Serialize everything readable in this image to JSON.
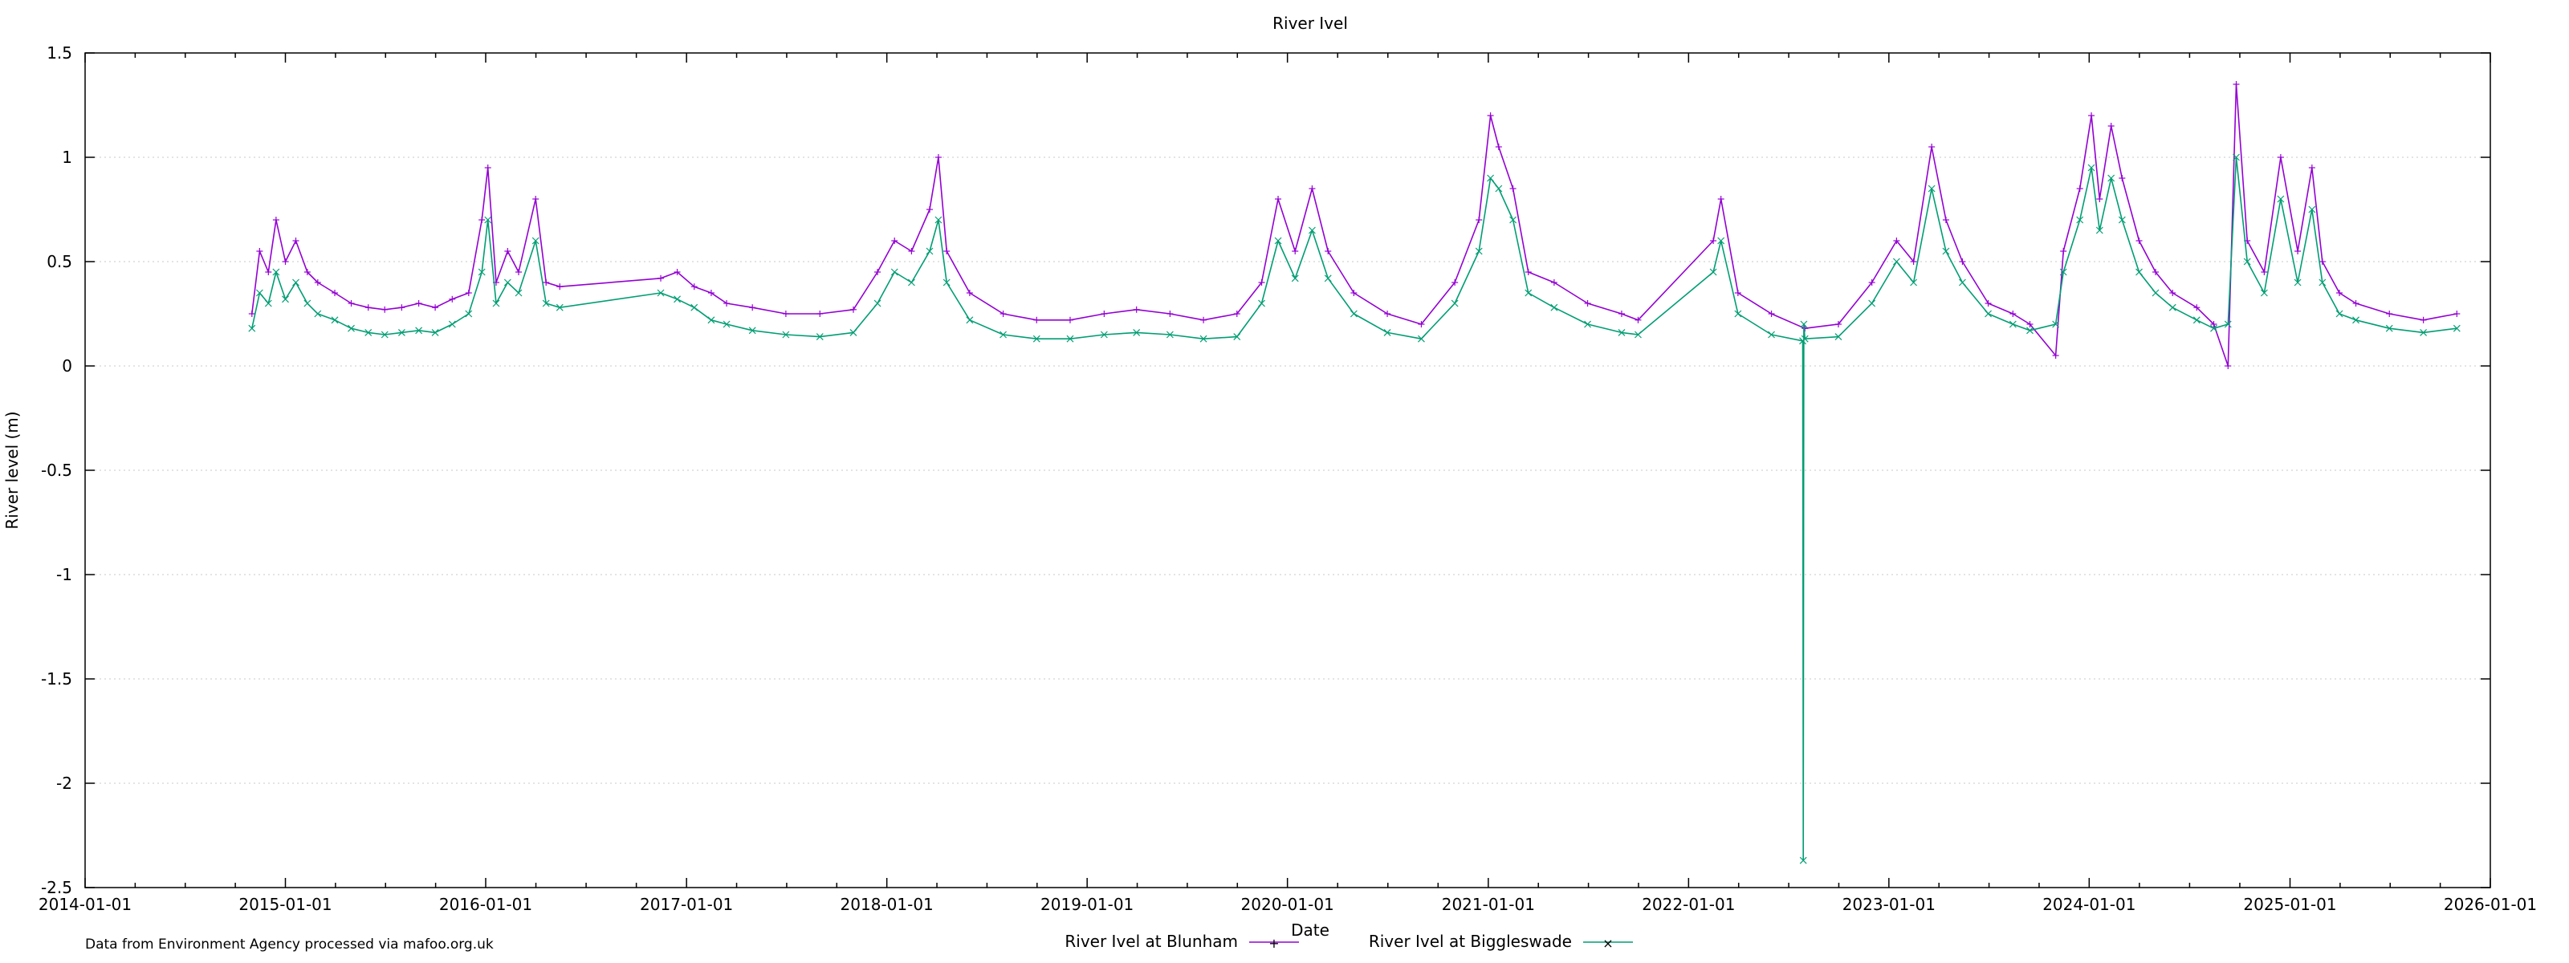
{
  "chart_data": {
    "type": "line",
    "title": "River Ivel",
    "xlabel": "Date",
    "ylabel": "River level (m)",
    "footer": "Data from Environment Agency processed via mafoo.org.uk",
    "x_axis": {
      "type": "date",
      "range": [
        "2014-01-01",
        "2026-01-01"
      ],
      "ticks": [
        "2014-01-01",
        "2015-01-01",
        "2016-01-01",
        "2017-01-01",
        "2018-01-01",
        "2019-01-01",
        "2020-01-01",
        "2021-01-01",
        "2022-01-01",
        "2023-01-01",
        "2024-01-01",
        "2025-01-01",
        "2026-01-01"
      ]
    },
    "y_axis": {
      "range": [
        -2.5,
        1.5
      ],
      "ticks": [
        "-2.5",
        "-2",
        "-1.5",
        "-1",
        "-0.5",
        "0",
        "0.5",
        "1",
        "1.5"
      ],
      "grid": true
    },
    "legend": {
      "placement": "bottom-center"
    },
    "series": [
      {
        "name": "River Ivel at Blunham",
        "color": "#9400d3",
        "marker": "+",
        "points": [
          [
            "2014-11-01",
            0.25
          ],
          [
            "2014-11-15",
            0.55
          ],
          [
            "2014-12-01",
            0.45
          ],
          [
            "2014-12-15",
            0.7
          ],
          [
            "2015-01-01",
            0.5
          ],
          [
            "2015-01-20",
            0.6
          ],
          [
            "2015-02-10",
            0.45
          ],
          [
            "2015-03-01",
            0.4
          ],
          [
            "2015-04-01",
            0.35
          ],
          [
            "2015-05-01",
            0.3
          ],
          [
            "2015-06-01",
            0.28
          ],
          [
            "2015-07-01",
            0.27
          ],
          [
            "2015-08-01",
            0.28
          ],
          [
            "2015-09-01",
            0.3
          ],
          [
            "2015-10-01",
            0.28
          ],
          [
            "2015-11-01",
            0.32
          ],
          [
            "2015-12-01",
            0.35
          ],
          [
            "2015-12-25",
            0.7
          ],
          [
            "2016-01-05",
            0.95
          ],
          [
            "2016-01-20",
            0.4
          ],
          [
            "2016-02-10",
            0.55
          ],
          [
            "2016-03-01",
            0.45
          ],
          [
            "2016-04-01",
            0.8
          ],
          [
            "2016-04-20",
            0.4
          ],
          [
            "2016-05-15",
            0.38
          ],
          [
            "2016-11-15",
            0.42
          ],
          [
            "2016-12-15",
            0.45
          ],
          [
            "2017-01-15",
            0.38
          ],
          [
            "2017-02-15",
            0.35
          ],
          [
            "2017-03-15",
            0.3
          ],
          [
            "2017-05-01",
            0.28
          ],
          [
            "2017-07-01",
            0.25
          ],
          [
            "2017-09-01",
            0.25
          ],
          [
            "2017-11-01",
            0.27
          ],
          [
            "2017-12-15",
            0.45
          ],
          [
            "2018-01-15",
            0.6
          ],
          [
            "2018-02-15",
            0.55
          ],
          [
            "2018-03-20",
            0.75
          ],
          [
            "2018-04-05",
            1.0
          ],
          [
            "2018-04-20",
            0.55
          ],
          [
            "2018-06-01",
            0.35
          ],
          [
            "2018-08-01",
            0.25
          ],
          [
            "2018-10-01",
            0.22
          ],
          [
            "2018-12-01",
            0.22
          ],
          [
            "2019-02-01",
            0.25
          ],
          [
            "2019-04-01",
            0.27
          ],
          [
            "2019-06-01",
            0.25
          ],
          [
            "2019-08-01",
            0.22
          ],
          [
            "2019-10-01",
            0.25
          ],
          [
            "2019-11-15",
            0.4
          ],
          [
            "2019-12-15",
            0.8
          ],
          [
            "2020-01-15",
            0.55
          ],
          [
            "2020-02-15",
            0.85
          ],
          [
            "2020-03-15",
            0.55
          ],
          [
            "2020-05-01",
            0.35
          ],
          [
            "2020-07-01",
            0.25
          ],
          [
            "2020-09-01",
            0.2
          ],
          [
            "2020-11-01",
            0.4
          ],
          [
            "2020-12-15",
            0.7
          ],
          [
            "2021-01-05",
            1.2
          ],
          [
            "2021-01-20",
            1.05
          ],
          [
            "2021-02-15",
            0.85
          ],
          [
            "2021-03-15",
            0.45
          ],
          [
            "2021-05-01",
            0.4
          ],
          [
            "2021-07-01",
            0.3
          ],
          [
            "2021-09-01",
            0.25
          ],
          [
            "2021-10-01",
            0.22
          ],
          [
            "2022-02-15",
            0.6
          ],
          [
            "2022-03-01",
            0.8
          ],
          [
            "2022-04-01",
            0.35
          ],
          [
            "2022-06-01",
            0.25
          ],
          [
            "2022-08-01",
            0.18
          ],
          [
            "2022-10-01",
            0.2
          ],
          [
            "2022-12-01",
            0.4
          ],
          [
            "2023-01-15",
            0.6
          ],
          [
            "2023-02-15",
            0.5
          ],
          [
            "2023-03-20",
            1.05
          ],
          [
            "2023-04-15",
            0.7
          ],
          [
            "2023-05-15",
            0.5
          ],
          [
            "2023-07-01",
            0.3
          ],
          [
            "2023-08-15",
            0.25
          ],
          [
            "2023-09-15",
            0.2
          ],
          [
            "2023-11-01",
            0.05
          ],
          [
            "2023-11-15",
            0.55
          ],
          [
            "2023-12-15",
            0.85
          ],
          [
            "2024-01-05",
            1.2
          ],
          [
            "2024-01-20",
            0.8
          ],
          [
            "2024-02-10",
            1.15
          ],
          [
            "2024-03-01",
            0.9
          ],
          [
            "2024-04-01",
            0.6
          ],
          [
            "2024-05-01",
            0.45
          ],
          [
            "2024-06-01",
            0.35
          ],
          [
            "2024-07-15",
            0.28
          ],
          [
            "2024-08-15",
            0.2
          ],
          [
            "2024-09-10",
            0.0
          ],
          [
            "2024-09-25",
            1.35
          ],
          [
            "2024-10-15",
            0.6
          ],
          [
            "2024-11-15",
            0.45
          ],
          [
            "2024-12-15",
            1.0
          ],
          [
            "2025-01-15",
            0.55
          ],
          [
            "2025-02-10",
            0.95
          ],
          [
            "2025-03-01",
            0.5
          ],
          [
            "2025-04-01",
            0.35
          ],
          [
            "2025-05-01",
            0.3
          ],
          [
            "2025-07-01",
            0.25
          ],
          [
            "2025-09-01",
            0.22
          ],
          [
            "2025-11-01",
            0.25
          ]
        ]
      },
      {
        "name": "River Ivel at Biggleswade",
        "color": "#009e73",
        "marker": "x",
        "points": [
          [
            "2014-11-01",
            0.18
          ],
          [
            "2014-11-15",
            0.35
          ],
          [
            "2014-12-01",
            0.3
          ],
          [
            "2014-12-15",
            0.45
          ],
          [
            "2015-01-01",
            0.32
          ],
          [
            "2015-01-20",
            0.4
          ],
          [
            "2015-02-10",
            0.3
          ],
          [
            "2015-03-01",
            0.25
          ],
          [
            "2015-04-01",
            0.22
          ],
          [
            "2015-05-01",
            0.18
          ],
          [
            "2015-06-01",
            0.16
          ],
          [
            "2015-07-01",
            0.15
          ],
          [
            "2015-08-01",
            0.16
          ],
          [
            "2015-09-01",
            0.17
          ],
          [
            "2015-10-01",
            0.16
          ],
          [
            "2015-11-01",
            0.2
          ],
          [
            "2015-12-01",
            0.25
          ],
          [
            "2015-12-25",
            0.45
          ],
          [
            "2016-01-05",
            0.7
          ],
          [
            "2016-01-20",
            0.3
          ],
          [
            "2016-02-10",
            0.4
          ],
          [
            "2016-03-01",
            0.35
          ],
          [
            "2016-04-01",
            0.6
          ],
          [
            "2016-04-20",
            0.3
          ],
          [
            "2016-05-15",
            0.28
          ],
          [
            "2016-11-15",
            0.35
          ],
          [
            "2016-12-15",
            0.32
          ],
          [
            "2017-01-15",
            0.28
          ],
          [
            "2017-02-15",
            0.22
          ],
          [
            "2017-03-15",
            0.2
          ],
          [
            "2017-05-01",
            0.17
          ],
          [
            "2017-07-01",
            0.15
          ],
          [
            "2017-09-01",
            0.14
          ],
          [
            "2017-11-01",
            0.16
          ],
          [
            "2017-12-15",
            0.3
          ],
          [
            "2018-01-15",
            0.45
          ],
          [
            "2018-02-15",
            0.4
          ],
          [
            "2018-03-20",
            0.55
          ],
          [
            "2018-04-05",
            0.7
          ],
          [
            "2018-04-20",
            0.4
          ],
          [
            "2018-06-01",
            0.22
          ],
          [
            "2018-08-01",
            0.15
          ],
          [
            "2018-10-01",
            0.13
          ],
          [
            "2018-12-01",
            0.13
          ],
          [
            "2019-02-01",
            0.15
          ],
          [
            "2019-04-01",
            0.16
          ],
          [
            "2019-06-01",
            0.15
          ],
          [
            "2019-08-01",
            0.13
          ],
          [
            "2019-10-01",
            0.14
          ],
          [
            "2019-11-15",
            0.3
          ],
          [
            "2019-12-15",
            0.6
          ],
          [
            "2020-01-15",
            0.42
          ],
          [
            "2020-02-15",
            0.65
          ],
          [
            "2020-03-15",
            0.42
          ],
          [
            "2020-05-01",
            0.25
          ],
          [
            "2020-07-01",
            0.16
          ],
          [
            "2020-09-01",
            0.13
          ],
          [
            "2020-11-01",
            0.3
          ],
          [
            "2020-12-15",
            0.55
          ],
          [
            "2021-01-05",
            0.9
          ],
          [
            "2021-01-20",
            0.85
          ],
          [
            "2021-02-15",
            0.7
          ],
          [
            "2021-03-15",
            0.35
          ],
          [
            "2021-05-01",
            0.28
          ],
          [
            "2021-07-01",
            0.2
          ],
          [
            "2021-09-01",
            0.16
          ],
          [
            "2021-10-01",
            0.15
          ],
          [
            "2022-02-15",
            0.45
          ],
          [
            "2022-03-01",
            0.6
          ],
          [
            "2022-04-01",
            0.25
          ],
          [
            "2022-06-01",
            0.15
          ],
          [
            "2022-07-28",
            0.12
          ],
          [
            "2022-07-29",
            -2.37
          ],
          [
            "2022-07-30",
            0.2
          ],
          [
            "2022-08-01",
            0.13
          ],
          [
            "2022-10-01",
            0.14
          ],
          [
            "2022-12-01",
            0.3
          ],
          [
            "2023-01-15",
            0.5
          ],
          [
            "2023-02-15",
            0.4
          ],
          [
            "2023-03-20",
            0.85
          ],
          [
            "2023-04-15",
            0.55
          ],
          [
            "2023-05-15",
            0.4
          ],
          [
            "2023-07-01",
            0.25
          ],
          [
            "2023-08-15",
            0.2
          ],
          [
            "2023-09-15",
            0.17
          ],
          [
            "2023-11-01",
            0.2
          ],
          [
            "2023-11-15",
            0.45
          ],
          [
            "2023-12-15",
            0.7
          ],
          [
            "2024-01-05",
            0.95
          ],
          [
            "2024-01-20",
            0.65
          ],
          [
            "2024-02-10",
            0.9
          ],
          [
            "2024-03-01",
            0.7
          ],
          [
            "2024-04-01",
            0.45
          ],
          [
            "2024-05-01",
            0.35
          ],
          [
            "2024-06-01",
            0.28
          ],
          [
            "2024-07-15",
            0.22
          ],
          [
            "2024-08-15",
            0.18
          ],
          [
            "2024-09-10",
            0.2
          ],
          [
            "2024-09-25",
            1.0
          ],
          [
            "2024-10-15",
            0.5
          ],
          [
            "2024-11-15",
            0.35
          ],
          [
            "2024-12-15",
            0.8
          ],
          [
            "2025-01-15",
            0.4
          ],
          [
            "2025-02-10",
            0.75
          ],
          [
            "2025-03-01",
            0.4
          ],
          [
            "2025-04-01",
            0.25
          ],
          [
            "2025-05-01",
            0.22
          ],
          [
            "2025-07-01",
            0.18
          ],
          [
            "2025-09-01",
            0.16
          ],
          [
            "2025-11-01",
            0.18
          ]
        ]
      }
    ]
  }
}
